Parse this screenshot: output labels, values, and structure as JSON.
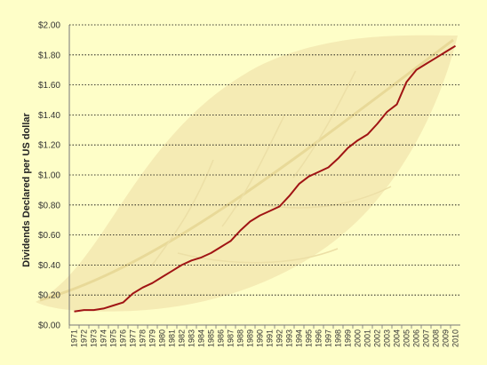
{
  "chart_data": {
    "type": "line",
    "title": "",
    "xlabel": "",
    "ylabel": "Dividends Declared per US dollar",
    "ylim": [
      0,
      2.0
    ],
    "yticks": [
      "$0.00",
      "$0.20",
      "$0.40",
      "$0.60",
      "$0.80",
      "$1.00",
      "$1.20",
      "$1.40",
      "$1.60",
      "$1.80",
      "$2.00"
    ],
    "grid": "horizontal dotted",
    "legend": "none",
    "x": [
      "1971",
      "1972",
      "1973",
      "1974",
      "1975",
      "1976",
      "1977",
      "1978",
      "1979",
      "1980",
      "1981",
      "1982",
      "1983",
      "1984",
      "1985",
      "1986",
      "1987",
      "1988",
      "1989",
      "1990",
      "1991",
      "1992",
      "1993",
      "1994",
      "1995",
      "1996",
      "1997",
      "1998",
      "1999",
      "2000",
      "2001",
      "2002",
      "2003",
      "2004",
      "2005",
      "2006",
      "2007",
      "2008",
      "2009",
      "2010"
    ],
    "series": [
      {
        "color": "#a01414",
        "values": [
          0.09,
          0.1,
          0.1,
          0.11,
          0.13,
          0.15,
          0.21,
          0.25,
          0.28,
          0.32,
          0.36,
          0.4,
          0.43,
          0.45,
          0.48,
          0.52,
          0.56,
          0.63,
          0.69,
          0.73,
          0.76,
          0.79,
          0.86,
          0.94,
          0.99,
          1.02,
          1.05,
          1.11,
          1.18,
          1.23,
          1.27,
          1.34,
          1.42,
          1.47,
          1.62,
          1.7,
          1.74,
          1.78,
          1.82,
          1.86
        ]
      }
    ]
  },
  "colors": {
    "background": "#fefec8",
    "leaf": "#f3e8b0",
    "line": "#a01414",
    "grid": "#000000"
  }
}
